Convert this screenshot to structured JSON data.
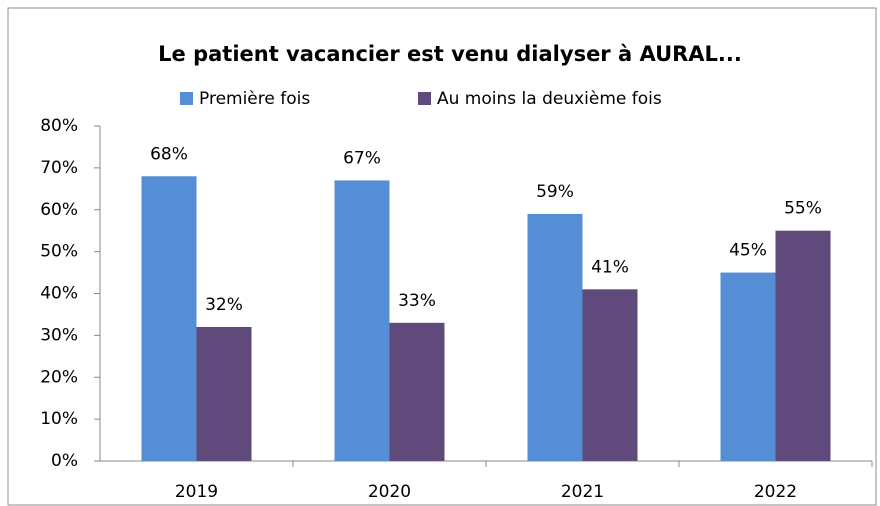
{
  "chart_data": {
    "type": "bar",
    "title": "Le patient vacancier est venu dialyser à AURAL...",
    "categories": [
      "2019",
      "2020",
      "2021",
      "2022"
    ],
    "series": [
      {
        "name": "Première fois",
        "color": "#558ed5",
        "values": [
          68,
          67,
          59,
          45
        ],
        "value_labels": [
          "68%",
          "67%",
          "59%",
          "45%"
        ]
      },
      {
        "name": "Au moins la deuxième fois",
        "color": "#604a7b",
        "values": [
          32,
          33,
          41,
          55
        ],
        "value_labels": [
          "32%",
          "33%",
          "41%",
          "55%"
        ]
      }
    ],
    "ylim": [
      0,
      80
    ],
    "yticks": [
      {
        "value": 0,
        "label": "0%"
      },
      {
        "value": 10,
        "label": "10%"
      },
      {
        "value": 20,
        "label": "20%"
      },
      {
        "value": 30,
        "label": "30%"
      },
      {
        "value": 40,
        "label": "40%"
      },
      {
        "value": 50,
        "label": "50%"
      },
      {
        "value": 60,
        "label": "60%"
      },
      {
        "value": 70,
        "label": "70%"
      },
      {
        "value": 80,
        "label": "80%"
      }
    ],
    "legend": "top"
  }
}
